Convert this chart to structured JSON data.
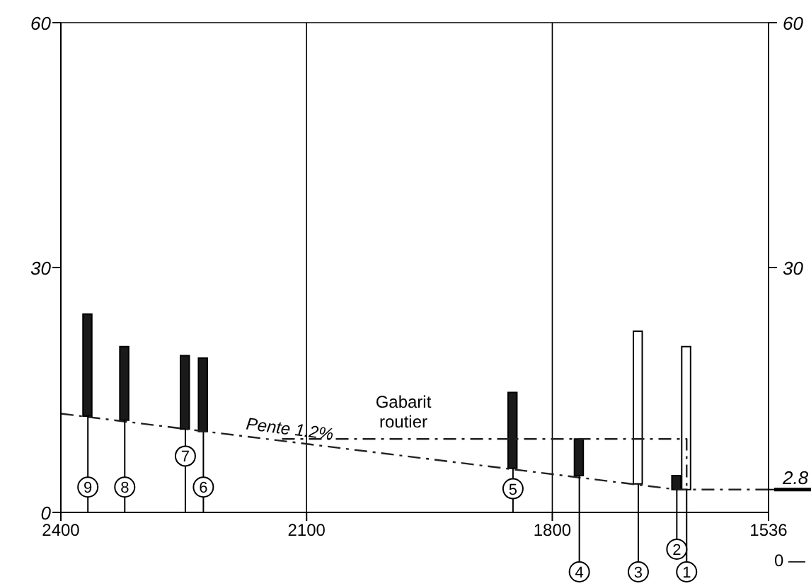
{
  "chart_data": {
    "type": "bar",
    "xlim": [
      2400,
      1536
    ],
    "xticks": [
      2400,
      2100,
      1800,
      1536
    ],
    "ylim": [
      0,
      60
    ],
    "yticks": [
      0,
      30,
      60
    ],
    "y2lim": [
      0,
      60
    ],
    "y2ticks": [
      {
        "value": 2.8,
        "label": "2.8"
      },
      30,
      60
    ],
    "grid": true,
    "series": [
      {
        "x": [
          2367,
          2322,
          2248,
          2226,
          1848,
          1767,
          1695,
          1648,
          1636
        ],
        "base": [
          11.8,
          11.3,
          10.2,
          9.9,
          5.4,
          4.5,
          3.5,
          2.8,
          2.8
        ],
        "values": [
          12.5,
          9.0,
          9.0,
          9.0,
          9.3,
          4.5,
          18.7,
          1.7,
          17.5
        ],
        "colors": [
          "#1a1a1a",
          "#1a1a1a",
          "#1a1a1a",
          "#1a1a1a",
          "#1a1a1a",
          "#1a1a1a",
          "#ffffff",
          "#1a1a1a",
          "#ffffff"
        ]
      },
      {
        "type": "line",
        "name": "Pente 1.2%",
        "x": [
          2400,
          1648,
          1536
        ],
        "values": [
          12.1,
          2.8,
          2.8
        ],
        "color": "#222222",
        "line_style": "dashed"
      },
      {
        "type": "line",
        "name": "Gabarit routier",
        "x": [
          2130,
          1636,
          1636
        ],
        "values": [
          9,
          9,
          2.8
        ],
        "color": "#222222",
        "line_style": "dashed"
      }
    ],
    "annotations": [
      {
        "text": "9",
        "x": 2367,
        "y": 3.1
      },
      {
        "text": "8",
        "x": 2322,
        "y": 3.1
      },
      {
        "text": "7",
        "x": 2248,
        "y": 6.9
      },
      {
        "text": "6",
        "x": 2226,
        "y": 3.1
      },
      {
        "text": "5",
        "x": 1848,
        "y": 2.9
      },
      {
        "text": "4",
        "x": 1767
      },
      {
        "text": "3",
        "x": 1695
      },
      {
        "text": "1",
        "x": 1636
      },
      {
        "text": "2",
        "x": 1648
      },
      "0 —"
    ]
  }
}
